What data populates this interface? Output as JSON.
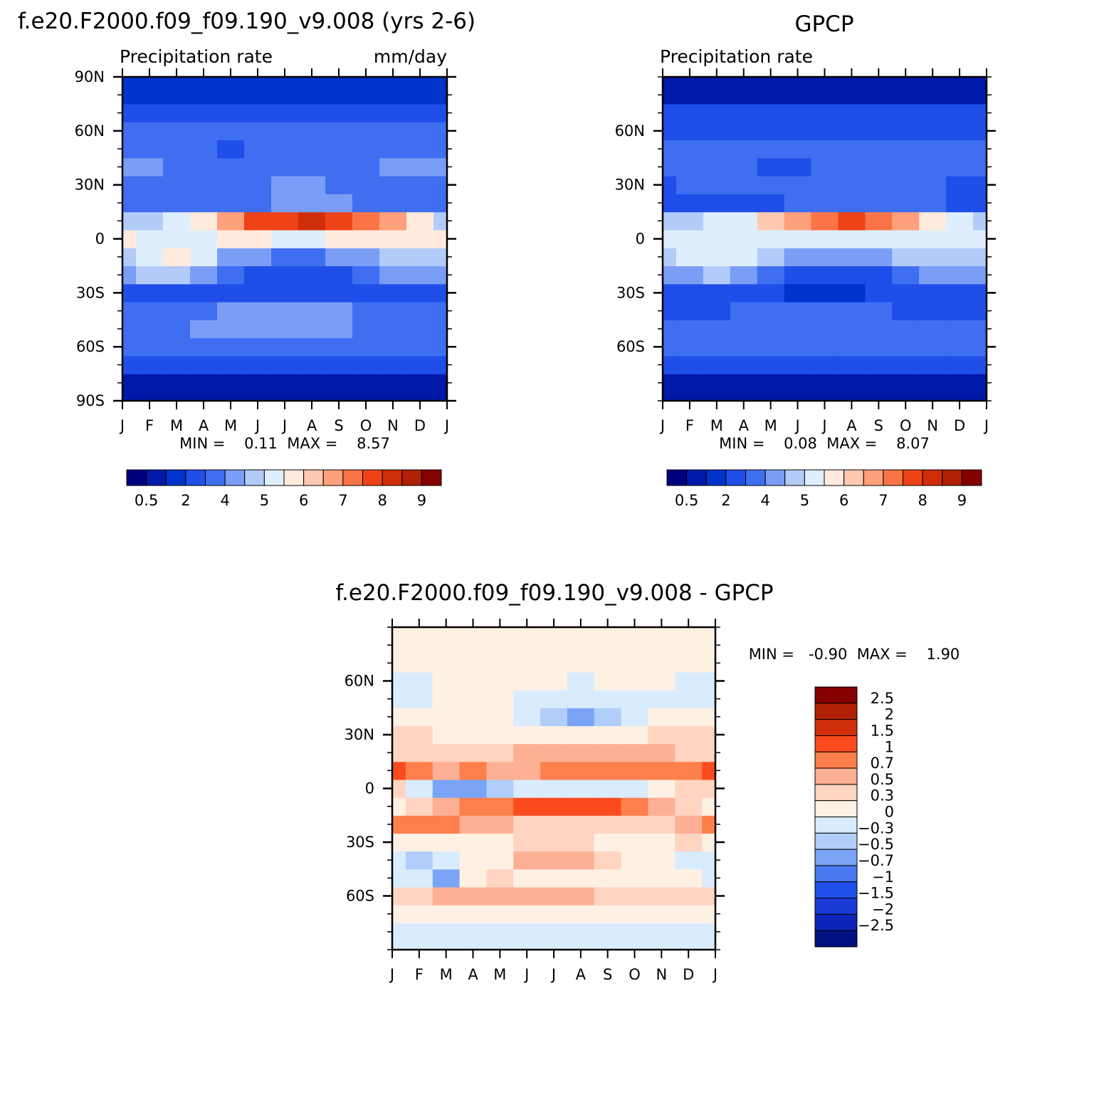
{
  "figure": {
    "background": "#ffffff"
  },
  "panels": {
    "model": {
      "title": "f.e20.F2000.f09_f09.190_v9.008 (yrs 2-6)",
      "left_label": "Precipitation rate",
      "right_label": "mm/day",
      "stats": "MIN =    0.11  MAX =    8.57"
    },
    "obs": {
      "title": "GPCP",
      "left_label": "Precipitation rate",
      "stats": "MIN =    0.08  MAX =    8.07"
    },
    "diff": {
      "title": "f.e20.F2000.f09_f09.190_v9.008 - GPCP",
      "stats": "MIN =   -0.90  MAX =    1.90"
    }
  },
  "chart_data": [
    {
      "type": "heatmap",
      "title": "f.e20.F2000.f09_f09.190_v9.008 (yrs 2-6)",
      "subtitle_left": "Precipitation rate",
      "subtitle_right": "mm/day",
      "x": [
        "J",
        "F",
        "M",
        "A",
        "M",
        "J",
        "J",
        "A",
        "S",
        "O",
        "N",
        "D",
        "J"
      ],
      "y_ticks": [
        "90N",
        "60N",
        "30N",
        "0",
        "30S",
        "60S",
        "90S"
      ],
      "ylim": [
        -90,
        90
      ],
      "latitudes": [
        -80,
        -70,
        -60,
        -50,
        -40,
        -30,
        -20,
        -10,
        0,
        10,
        20,
        30,
        40,
        50,
        60,
        70,
        80
      ],
      "values": [
        [
          0.3,
          0.3,
          0.3,
          0.3,
          0.3,
          0.3,
          0.3,
          0.3,
          0.3,
          0.3,
          0.3,
          0.3,
          0.3
        ],
        [
          1,
          1,
          1,
          1,
          1,
          1,
          1,
          1,
          1,
          1,
          1,
          1,
          1
        ],
        [
          2,
          2,
          2,
          2.2,
          2.3,
          2.4,
          2.4,
          2.3,
          2.2,
          2.1,
          2,
          2,
          2
        ],
        [
          2.4,
          2.5,
          2.8,
          3,
          3.2,
          3.2,
          3.2,
          3.2,
          3,
          2.6,
          2.4,
          2.4,
          2.4
        ],
        [
          2,
          2.2,
          2.5,
          2.8,
          3,
          3.3,
          3.2,
          3.1,
          3,
          2.4,
          2.2,
          2,
          2
        ],
        [
          1.8,
          1.8,
          1.6,
          1.5,
          1.4,
          1.3,
          1.2,
          1.2,
          1.3,
          1.5,
          1.6,
          1.8,
          1.8
        ],
        [
          3.6,
          4.2,
          4.8,
          3.4,
          2.4,
          1.8,
          1.6,
          1.6,
          1.8,
          2.4,
          3.2,
          3.8,
          3.6
        ],
        [
          4,
          5.8,
          6,
          5.2,
          3.8,
          3,
          2.8,
          2.8,
          3.2,
          3.6,
          4.2,
          4.4,
          4
        ],
        [
          6,
          5.4,
          5.2,
          5.6,
          6,
          6,
          5.8,
          5.8,
          6,
          6,
          6,
          6,
          6
        ],
        [
          4.6,
          4.8,
          5.4,
          6.4,
          7.2,
          8,
          8.4,
          8.5,
          8.2,
          7.6,
          7,
          6.4,
          4.6
        ],
        [
          2.2,
          2,
          2,
          2.2,
          2.4,
          2.8,
          3,
          3.2,
          3,
          2.8,
          2.4,
          2.2,
          2.2
        ],
        [
          2.2,
          2.4,
          2.2,
          2.4,
          2.6,
          2.8,
          3,
          3,
          2.6,
          2.4,
          2.4,
          2.4,
          2.2
        ],
        [
          3,
          3.2,
          2.4,
          2.2,
          2,
          2,
          2.2,
          2.2,
          2.4,
          2.8,
          3,
          3,
          3
        ],
        [
          2.2,
          2.2,
          2.2,
          2,
          1.8,
          2,
          2.2,
          2.2,
          2.2,
          2.2,
          2.2,
          2.2,
          2.2
        ],
        [
          2,
          2,
          2,
          2,
          2,
          2,
          2,
          2,
          2,
          2,
          2,
          2,
          2
        ],
        [
          1.2,
          1.2,
          1.2,
          1.2,
          1.2,
          1.2,
          1.2,
          1.2,
          1.2,
          1.2,
          1.2,
          1.2,
          1.2
        ],
        [
          0.8,
          0.8,
          0.8,
          0.8,
          0.8,
          0.8,
          0.8,
          0.8,
          0.8,
          0.8,
          0.8,
          0.8,
          0.8
        ]
      ],
      "stats": {
        "min": 0.11,
        "max": 8.57
      },
      "colorbar": {
        "orientation": "horizontal",
        "colors": [
          "#00007f",
          "#0019a8",
          "#0033cc",
          "#1f4fe8",
          "#3f6ef0",
          "#7a9ef5",
          "#b2cbf9",
          "#deeefc",
          "#ffeadd",
          "#ffc8b0",
          "#fda07c",
          "#fb7447",
          "#ee4217",
          "#d02e0a",
          "#b02004",
          "#850000"
        ],
        "labels": [
          "0.5",
          "2",
          "4",
          "5",
          "6",
          "7",
          "8",
          "9"
        ]
      }
    },
    {
      "type": "heatmap",
      "title": "GPCP",
      "subtitle_left": "Precipitation rate",
      "x": [
        "J",
        "F",
        "M",
        "A",
        "M",
        "J",
        "J",
        "A",
        "S",
        "O",
        "N",
        "D",
        "J"
      ],
      "y_ticks": [
        "60N",
        "30N",
        "0",
        "30S",
        "60S"
      ],
      "ylim": [
        -90,
        90
      ],
      "latitudes": [
        -80,
        -70,
        -60,
        -50,
        -40,
        -30,
        -20,
        -10,
        0,
        10,
        20,
        30,
        40,
        50,
        60,
        70,
        80
      ],
      "values": [
        [
          0.4,
          0.4,
          0.4,
          0.4,
          0.4,
          0.4,
          0.4,
          0.4,
          0.4,
          0.4,
          0.4,
          0.4,
          0.4
        ],
        [
          1,
          1,
          1,
          1,
          1,
          1,
          1,
          1,
          1,
          1,
          1,
          1,
          1
        ],
        [
          2,
          2,
          2,
          2,
          2,
          2,
          2,
          2,
          2,
          2,
          2,
          2,
          2
        ],
        [
          2,
          2.2,
          2.4,
          2.4,
          2.6,
          2.6,
          2.8,
          2.8,
          2.6,
          2.4,
          2.2,
          2,
          2
        ],
        [
          1.8,
          1.8,
          1.8,
          2,
          2,
          2,
          2,
          2,
          2,
          1.8,
          1.8,
          1.8,
          1.8
        ],
        [
          1.5,
          1.5,
          1.4,
          1.2,
          1,
          0.9,
          0.8,
          0.9,
          1,
          1.2,
          1.4,
          1.5,
          1.5
        ],
        [
          3.2,
          3.6,
          4,
          3,
          2,
          1.6,
          1.4,
          1.4,
          1.6,
          2.2,
          3,
          3.4,
          3.2
        ],
        [
          4.6,
          5.4,
          5.6,
          5,
          4,
          3.4,
          3.2,
          3.2,
          3.6,
          4.2,
          4.6,
          4.8,
          4.6
        ],
        [
          5.6,
          5.2,
          5,
          5.4,
          5.8,
          5.8,
          5.6,
          5.6,
          5.8,
          5.8,
          5.8,
          5.8,
          5.6
        ],
        [
          4.2,
          4.4,
          5,
          5.8,
          6.8,
          7.4,
          7.8,
          8,
          7.6,
          7,
          6.4,
          5.8,
          4.2
        ],
        [
          1.6,
          1.4,
          1.4,
          1.6,
          1.8,
          2.2,
          2.6,
          2.8,
          2.6,
          2.4,
          2,
          1.8,
          1.6
        ],
        [
          1.8,
          2,
          2,
          2.2,
          2.4,
          2.6,
          2.6,
          2.4,
          2.2,
          2,
          2,
          1.8,
          1.8
        ],
        [
          2.6,
          2.8,
          2.2,
          2,
          1.8,
          1.8,
          2,
          2,
          2.2,
          2.4,
          2.6,
          2.6,
          2.6
        ],
        [
          2,
          2,
          2,
          2,
          2,
          2,
          2,
          2,
          2,
          2,
          2,
          2,
          2
        ],
        [
          1.6,
          1.6,
          1.6,
          1.6,
          1.6,
          1.6,
          1.6,
          1.6,
          1.6,
          1.6,
          1.6,
          1.6,
          1.6
        ],
        [
          1,
          1,
          1,
          1,
          1,
          1,
          1,
          1,
          1,
          1,
          1,
          1,
          1
        ],
        [
          0.4,
          0.4,
          0.4,
          0.4,
          0.4,
          0.4,
          0.4,
          0.4,
          0.4,
          0.4,
          0.4,
          0.4,
          0.4
        ]
      ],
      "stats": {
        "min": 0.08,
        "max": 8.07
      },
      "colorbar": {
        "orientation": "horizontal",
        "colors": [
          "#00007f",
          "#0019a8",
          "#0033cc",
          "#1f4fe8",
          "#3f6ef0",
          "#7a9ef5",
          "#b2cbf9",
          "#deeefc",
          "#ffeadd",
          "#ffc8b0",
          "#fda07c",
          "#fb7447",
          "#ee4217",
          "#d02e0a",
          "#b02004",
          "#850000"
        ],
        "labels": [
          "0.5",
          "2",
          "4",
          "5",
          "6",
          "7",
          "8",
          "9"
        ]
      }
    },
    {
      "type": "heatmap",
      "title": "f.e20.F2000.f09_f09.190_v9.008 - GPCP",
      "x": [
        "J",
        "F",
        "M",
        "A",
        "M",
        "J",
        "J",
        "A",
        "S",
        "O",
        "N",
        "D",
        "J"
      ],
      "y_ticks": [
        "60N",
        "30N",
        "0",
        "30S",
        "60S"
      ],
      "ylim": [
        -90,
        90
      ],
      "latitudes": [
        -80,
        -70,
        -60,
        -50,
        -40,
        -30,
        -20,
        -10,
        0,
        10,
        20,
        30,
        40,
        50,
        60,
        70,
        80
      ],
      "values": [
        [
          -0.1,
          -0.1,
          -0.1,
          -0.1,
          -0.1,
          -0.1,
          -0.1,
          -0.1,
          -0.1,
          -0.1,
          -0.1,
          -0.1,
          -0.1
        ],
        [
          0.1,
          0.1,
          0.1,
          0.1,
          0.1,
          0.1,
          0.1,
          0.1,
          0.1,
          0.1,
          0.1,
          0.1,
          0.1
        ],
        [
          0.3,
          0.3,
          0.5,
          0.6,
          0.6,
          0.5,
          0.5,
          0.5,
          0.4,
          0.3,
          0.3,
          0.4,
          0.3
        ],
        [
          -0.1,
          -0.2,
          -0.6,
          0.1,
          0.3,
          0.1,
          0.1,
          0.2,
          0.2,
          0.1,
          0,
          0,
          -0.1
        ],
        [
          -0.3,
          -0.4,
          -0.3,
          0,
          0.2,
          0.5,
          0.6,
          0.5,
          0.3,
          0.2,
          0.1,
          -0.3,
          -0.3
        ],
        [
          0.1,
          0.1,
          0.2,
          0.2,
          0.2,
          0.3,
          0.3,
          0.3,
          0.2,
          0.2,
          0.2,
          0.3,
          0.1
        ],
        [
          0.7,
          0.8,
          0.8,
          0.6,
          0.5,
          0.4,
          0.4,
          0.4,
          0.4,
          0.4,
          0.4,
          0.6,
          0.7
        ],
        [
          0.1,
          0.4,
          0.6,
          0.7,
          0.9,
          1,
          1.1,
          1.2,
          1.1,
          0.8,
          0.5,
          0.4,
          0.1
        ],
        [
          0.3,
          -0.3,
          -0.6,
          -0.6,
          -0.4,
          -0.2,
          -0.2,
          -0.2,
          -0.2,
          -0.2,
          0.2,
          0.3,
          0.3
        ],
        [
          1,
          0.8,
          0.6,
          0.7,
          0.6,
          0.6,
          0.7,
          0.7,
          0.7,
          0.7,
          0.8,
          0.9,
          1
        ],
        [
          0.4,
          0.3,
          0.3,
          0.4,
          0.4,
          0.5,
          0.5,
          0.6,
          0.6,
          0.6,
          0.5,
          0.4,
          0.4
        ],
        [
          0.3,
          0.3,
          0.2,
          0.2,
          0.2,
          0.1,
          0.1,
          0.2,
          0.2,
          0.2,
          0.3,
          0.3,
          0.3
        ],
        [
          0,
          0,
          0,
          0,
          0.1,
          -0.1,
          -0.4,
          -0.6,
          -0.5,
          -0.2,
          0,
          0,
          0
        ],
        [
          -0.1,
          -0.1,
          0,
          0,
          0,
          -0.1,
          -0.2,
          -0.2,
          -0.3,
          -0.2,
          -0.1,
          -0.1,
          -0.1
        ],
        [
          -0.1,
          -0.1,
          0,
          0.1,
          0.1,
          0,
          0,
          -0.1,
          0,
          0.1,
          0,
          -0.1,
          -0.1
        ],
        [
          0.1,
          0.1,
          0.1,
          0.1,
          0.1,
          0.1,
          0.1,
          0.1,
          0.1,
          0.1,
          0.1,
          0.1,
          0.1
        ],
        [
          0.1,
          0.1,
          0.1,
          0.2,
          0.2,
          0.1,
          0.1,
          0.1,
          0.1,
          0.1,
          0.1,
          0.1,
          0.1
        ]
      ],
      "stats": {
        "min": -0.9,
        "max": 1.9
      },
      "colorbar": {
        "orientation": "vertical",
        "colors": [
          "#850000",
          "#b02004",
          "#d02e0a",
          "#fb4b1e",
          "#fc7f4c",
          "#fdb094",
          "#ffd4c1",
          "#fff0e4",
          "#d9ecfd",
          "#b0cef9",
          "#7aa4f6",
          "#4a78f1",
          "#2150ea",
          "#1a3ad8",
          "#0c25b8",
          "#00117f"
        ],
        "labels": [
          "2.5",
          "2",
          "1.5",
          "1",
          "0.7",
          "0.5",
          "0.3",
          "0",
          "-0.3",
          "-0.5",
          "-0.7",
          "-1",
          "-1.5",
          "-2",
          "-2.5"
        ]
      }
    }
  ]
}
